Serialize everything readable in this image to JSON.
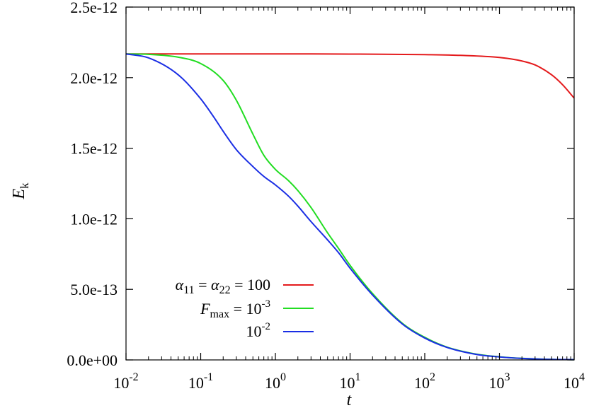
{
  "chart_data": {
    "type": "line",
    "title": "",
    "xlabel": "t",
    "ylabel": {
      "main": "E",
      "sub": "k"
    },
    "x_scale": "log",
    "xlim": [
      0.01,
      10000
    ],
    "ylim": [
      0,
      2.5e-12
    ],
    "grid": false,
    "legend_position": "bottom-left",
    "x_ticks": [
      {
        "value": 0.01,
        "base": "10",
        "exp": "-2"
      },
      {
        "value": 0.1,
        "base": "10",
        "exp": "-1"
      },
      {
        "value": 1,
        "base": "10",
        "exp": "0"
      },
      {
        "value": 10,
        "base": "10",
        "exp": "1"
      },
      {
        "value": 100,
        "base": "10",
        "exp": "2"
      },
      {
        "value": 1000,
        "base": "10",
        "exp": "3"
      },
      {
        "value": 10000,
        "base": "10",
        "exp": "4"
      }
    ],
    "y_ticks": [
      {
        "value": 0,
        "label": "0.0e+00"
      },
      {
        "value": 5e-13,
        "label": "5.0e-13"
      },
      {
        "value": 1e-12,
        "label": "1.0e-12"
      },
      {
        "value": 1.5e-12,
        "label": "1.5e-12"
      },
      {
        "value": 2e-12,
        "label": "2.0e-12"
      },
      {
        "value": 2.5e-12,
        "label": "2.5e-12"
      }
    ],
    "series": [
      {
        "legend": {
          "a": "α",
          "a_sub": "11",
          "eq1": " = ",
          "b": "α",
          "b_sub": "22",
          "eq2": " = 100"
        },
        "color": "#e41a1c",
        "x": [
          0.01,
          0.1,
          1,
          10,
          100,
          300,
          1000,
          2000,
          3000,
          5000,
          7000,
          10000
        ],
        "y": [
          2.168e-12,
          2.168e-12,
          2.168e-12,
          2.167e-12,
          2.163e-12,
          2.158e-12,
          2.143e-12,
          2.118e-12,
          2.09e-12,
          2.02e-12,
          1.95e-12,
          1.855e-12
        ]
      },
      {
        "legend": {
          "f": "F",
          "f_sub": "max",
          "eq": " = 10",
          "exp": "-3"
        },
        "color": "#22dd22",
        "x": [
          0.01,
          0.02,
          0.05,
          0.1,
          0.2,
          0.3,
          0.5,
          0.7,
          1,
          1.5,
          2,
          3,
          5,
          7,
          10,
          20,
          50,
          100,
          200,
          500,
          1000,
          2000,
          5000,
          10000
        ],
        "y": [
          2.168e-12,
          2.165e-12,
          2.145e-12,
          2.1e-12,
          1.98e-12,
          1.84e-12,
          1.6e-12,
          1.45e-12,
          1.35e-12,
          1.27e-12,
          1.2e-12,
          1.08e-12,
          9e-13,
          7.9e-13,
          6.7e-13,
          4.7e-13,
          2.6e-13,
          1.6e-13,
          9e-14,
          4e-14,
          2.2e-14,
          1.1e-14,
          4e-15,
          2e-15
        ]
      },
      {
        "legend": {
          "base": "10",
          "exp": "-2"
        },
        "color": "#1a2ee4",
        "x": [
          0.01,
          0.02,
          0.05,
          0.1,
          0.15,
          0.2,
          0.3,
          0.5,
          0.7,
          1,
          1.5,
          2,
          3,
          5,
          7,
          10,
          20,
          50,
          100,
          200,
          500,
          1000,
          2000,
          5000,
          10000
        ],
        "y": [
          2.168e-12,
          2.14e-12,
          2.02e-12,
          1.85e-12,
          1.72e-12,
          1.62e-12,
          1.49e-12,
          1.37e-12,
          1.3e-12,
          1.24e-12,
          1.16e-12,
          1.09e-12,
          9.8e-13,
          8.5e-13,
          7.6e-13,
          6.5e-13,
          4.6e-13,
          2.55e-13,
          1.55e-13,
          8.8e-14,
          3.8e-14,
          2.1e-14,
          1.05e-14,
          3.8e-15,
          2e-15
        ]
      }
    ]
  }
}
